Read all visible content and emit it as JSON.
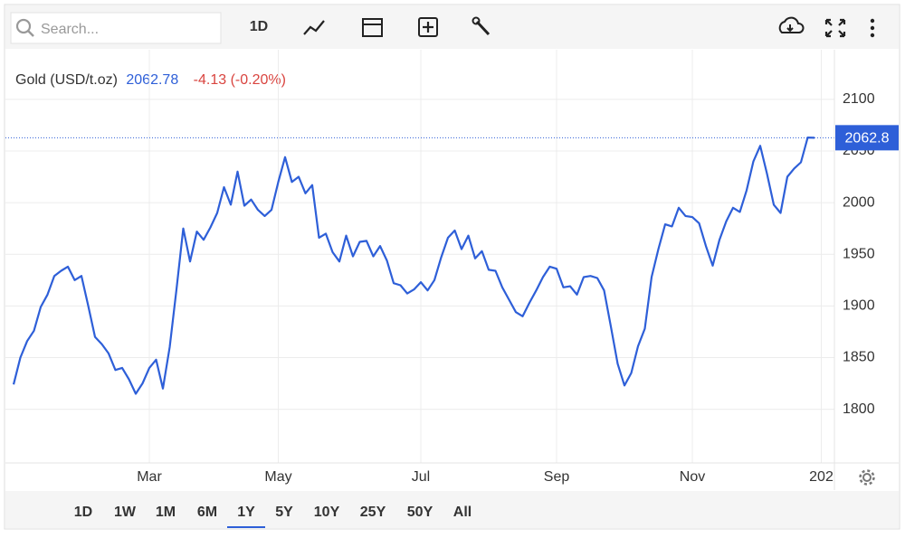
{
  "toolbar": {
    "search_placeholder": "Search...",
    "interval": "1D"
  },
  "header": {
    "instrument": "Gold (USD/t.oz)",
    "price": "2062.78",
    "change": "-4.13 (-0.20%)"
  },
  "ranges": [
    "1D",
    "1W",
    "1M",
    "6M",
    "1Y",
    "5Y",
    "10Y",
    "25Y",
    "50Y",
    "All"
  ],
  "active_range": "1Y",
  "chart_data": {
    "type": "line",
    "categories": [
      null,
      null,
      null,
      null,
      null,
      null,
      null,
      null,
      null,
      null,
      null,
      null,
      null,
      null,
      null,
      null,
      null,
      null,
      null,
      null,
      "Mar",
      null,
      null,
      null,
      null,
      null,
      null,
      null,
      null,
      null,
      null,
      null,
      null,
      null,
      null,
      null,
      null,
      null,
      null,
      "May",
      null,
      null,
      null,
      null,
      null,
      null,
      null,
      null,
      null,
      null,
      null,
      null,
      null,
      null,
      null,
      null,
      null,
      null,
      null,
      null,
      "Jul",
      null,
      null,
      null,
      null,
      null,
      null,
      null,
      null,
      null,
      null,
      null,
      null,
      null,
      null,
      null,
      null,
      null,
      null,
      null,
      "Sep",
      null,
      null,
      null,
      null,
      null,
      null,
      null,
      null,
      null,
      null,
      null,
      null,
      null,
      null,
      null,
      null,
      null,
      null,
      null,
      "Nov",
      null,
      null,
      null,
      null,
      null,
      null,
      null,
      null,
      null,
      null,
      null,
      null,
      null,
      null,
      null,
      null,
      null,
      null,
      "202",
      null,
      null
    ],
    "series": [
      {
        "name": "Gold (USD/t.oz)",
        "color": "#2e5fd8",
        "values": [
          1824,
          1850,
          1866,
          1876,
          1899,
          1911,
          1929,
          1934,
          1938,
          1925,
          1929,
          1900,
          1870,
          1863,
          1854,
          1838,
          1840,
          1829,
          1815,
          1825,
          1840,
          1848,
          1820,
          1860,
          1916,
          1975,
          1943,
          1972,
          1964,
          1976,
          1990,
          2015,
          1998,
          2030,
          1997,
          2003,
          1993,
          1987,
          1993,
          2020,
          2044,
          2020,
          2025,
          2009,
          2017,
          1966,
          1970,
          1952,
          1943,
          1968,
          1948,
          1962,
          1963,
          1948,
          1958,
          1944,
          1922,
          1920,
          1912,
          1916,
          1923,
          1915,
          1925,
          1947,
          1966,
          1973,
          1955,
          1968,
          1946,
          1953,
          1935,
          1934,
          1918,
          1906,
          1894,
          1890,
          1903,
          1915,
          1928,
          1938,
          1936,
          1918,
          1919,
          1911,
          1928,
          1929,
          1927,
          1915,
          1880,
          1844,
          1823,
          1835,
          1861,
          1878,
          1928,
          1955,
          1979,
          1977,
          1995,
          1987,
          1986,
          1980,
          1958,
          1939,
          1964,
          1982,
          1995,
          1991,
          2012,
          2040,
          2055,
          2028,
          1998,
          1990,
          2025,
          2033,
          2039,
          2063,
          2062.78,
          null,
          null,
          null
        ]
      }
    ],
    "ylim": [
      1748,
      2148
    ],
    "yticks": [
      1800,
      1850,
      1900,
      1950,
      2000,
      2050,
      2100
    ],
    "last_price": 2062.8,
    "grid": true
  }
}
